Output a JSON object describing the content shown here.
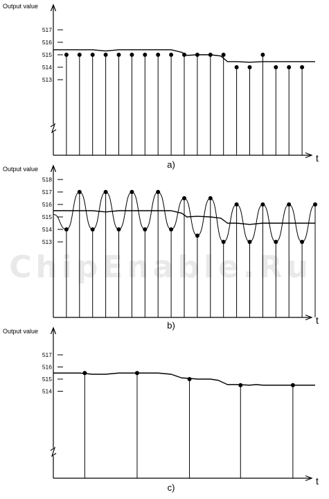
{
  "watermark": "ChipEnable.Ru",
  "chart_data": [
    {
      "type": "scatter",
      "panel_label": "a)",
      "ylabel": "Output value",
      "xlabel": "t",
      "yticks": [
        513,
        514,
        515,
        516,
        517
      ],
      "ylim": [
        508.5,
        518
      ],
      "axis_break": true,
      "curve": {
        "x": [
          0,
          3,
          4,
          5,
          9,
          9.8,
          10.2,
          11,
          12,
          12.8,
          13.3,
          14,
          15,
          16,
          17,
          18,
          19,
          20
        ],
        "y": [
          515.4,
          515.4,
          515.3,
          515.4,
          515.4,
          515.2,
          514.95,
          515.0,
          515.0,
          514.9,
          514.45,
          514.45,
          514.4,
          514.45,
          514.45,
          514.45,
          514.45,
          514.45
        ]
      },
      "samples": {
        "x": [
          1,
          2,
          3,
          4,
          5,
          6,
          7,
          8,
          9,
          10,
          11,
          12,
          13,
          14,
          15,
          16,
          17,
          18,
          19
        ],
        "y": [
          515,
          515,
          515,
          515,
          515,
          515,
          515,
          515,
          515,
          515,
          515,
          515,
          515,
          514,
          514,
          515,
          514,
          514,
          514
        ]
      }
    },
    {
      "type": "scatter",
      "panel_label": "b)",
      "ylabel": "Output value",
      "xlabel": "t",
      "yticks": [
        513,
        514,
        515,
        516,
        517,
        518
      ],
      "ylim": [
        507,
        518.5
      ],
      "axis_break": false,
      "curve": {
        "x": [
          0,
          3,
          4,
          5,
          9,
          9.8,
          10.2,
          11,
          12,
          12.8,
          13.3,
          14,
          15,
          16,
          17,
          18,
          19,
          20
        ],
        "y": [
          515.5,
          515.5,
          515.4,
          515.5,
          515.5,
          515.3,
          515.0,
          515.05,
          515.0,
          514.9,
          514.5,
          514.5,
          514.4,
          514.5,
          514.5,
          514.5,
          514.5,
          514.5
        ]
      },
      "samples": {
        "x": [
          1,
          2,
          3,
          4,
          5,
          6,
          7,
          8,
          9,
          10,
          11,
          12,
          13,
          14,
          15,
          16,
          17,
          18,
          19,
          20
        ],
        "y": [
          514,
          517,
          514,
          517,
          514,
          517,
          514,
          517,
          514,
          516.5,
          513.5,
          516.5,
          513,
          516,
          513,
          516,
          513,
          516,
          513,
          516
        ]
      }
    },
    {
      "type": "scatter",
      "panel_label": "c)",
      "ylabel": "Output value",
      "xlabel": "t",
      "yticks": [
        514,
        515,
        516,
        517
      ],
      "ylim": [
        508.5,
        518
      ],
      "axis_break": true,
      "curve": {
        "x": [
          0,
          2,
          3,
          4,
          5,
          6,
          8,
          9,
          9.8,
          10.5,
          11,
          12,
          12.6,
          13.3,
          14,
          15,
          15.5,
          16,
          17,
          18,
          20
        ],
        "y": [
          515.5,
          515.5,
          515.4,
          515.4,
          515.5,
          515.5,
          515.5,
          515.4,
          515.1,
          515.05,
          515.0,
          515.0,
          514.9,
          514.55,
          514.55,
          514.5,
          514.55,
          514.5,
          514.5,
          514.5,
          514.5
        ]
      },
      "samples": {
        "x": [
          2.4,
          6.4,
          10.4,
          14.3,
          18.3
        ],
        "y": [
          515.5,
          515.5,
          515.0,
          514.5,
          514.5
        ]
      }
    }
  ]
}
